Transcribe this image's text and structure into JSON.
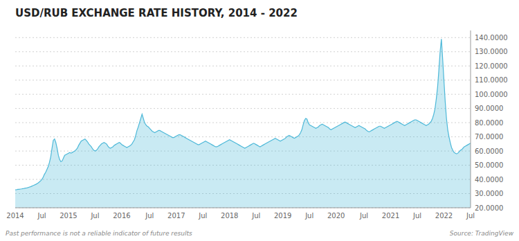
{
  "chart_data": {
    "type": "area",
    "title": "USD/RUB EXCHANGE RATE HISTORY, 2014 - 2022",
    "annotations": [
      "Past performance is not a reliable indicator of future results",
      "Source: TradingView"
    ],
    "color": "#4DB8D8",
    "grid": true,
    "ylim": [
      20,
      145
    ],
    "yticks": [
      {
        "value": 20.0,
        "label": "20.0000"
      },
      {
        "value": 30.0,
        "label": "30.0000"
      },
      {
        "value": 40.0,
        "label": "40.0000"
      },
      {
        "value": 50.0,
        "label": "50.0000"
      },
      {
        "value": 60.0,
        "label": "60.0000"
      },
      {
        "value": 70.0,
        "label": "70.0000"
      },
      {
        "value": 80.0,
        "label": "80.0000"
      },
      {
        "value": 90.0,
        "label": "90.0000"
      },
      {
        "value": 100.0,
        "label": "100.0000"
      },
      {
        "value": 110.0,
        "label": "110.0000"
      },
      {
        "value": 120.0,
        "label": "120.0000"
      },
      {
        "value": 130.0,
        "label": "130.0000"
      },
      {
        "value": 140.0,
        "label": "140.0000"
      }
    ],
    "categories": [
      "2014",
      null,
      null,
      null,
      null,
      null,
      null,
      null,
      null,
      null,
      null,
      null,
      null,
      null,
      null,
      null,
      null,
      null,
      null,
      null,
      null,
      "Jul",
      null,
      null,
      null,
      null,
      null,
      null,
      null,
      null,
      null,
      null,
      null,
      null,
      null,
      null,
      null,
      null,
      null,
      null,
      null,
      null,
      "2015",
      null,
      null,
      null,
      null,
      null,
      null,
      null,
      null,
      null,
      null,
      null,
      null,
      null,
      null,
      null,
      null,
      null,
      null,
      null,
      null,
      "Jul",
      null,
      null,
      null,
      null,
      null,
      null,
      null,
      null,
      null,
      null,
      null,
      null,
      null,
      null,
      null,
      null,
      null,
      null,
      null,
      null,
      "2016",
      null,
      null,
      null,
      null,
      null,
      null,
      null,
      null,
      null,
      null,
      null,
      null,
      null,
      null,
      null,
      null,
      null,
      null,
      null,
      null,
      null,
      "Jul",
      null,
      null,
      null,
      null,
      null,
      null,
      null,
      null,
      null,
      null,
      null,
      null,
      null,
      null,
      null,
      null,
      null,
      null,
      null,
      null,
      "2017",
      null,
      null,
      null,
      null,
      null,
      null,
      null,
      null,
      null,
      null,
      null,
      null,
      null,
      null,
      null,
      null,
      null,
      null,
      null,
      null,
      "Jul",
      null,
      null,
      null,
      null,
      null,
      null,
      null,
      null,
      null,
      null,
      null,
      null,
      null,
      null,
      null,
      null,
      null,
      null,
      null,
      null,
      "2018",
      null,
      null,
      null,
      null,
      null,
      null,
      null,
      null,
      null,
      null,
      null,
      null,
      null,
      null,
      null,
      null,
      null,
      null,
      null,
      null,
      "Jul",
      null,
      null,
      null,
      null,
      null,
      null,
      null,
      null,
      null,
      null,
      null,
      null,
      null,
      null,
      null,
      null,
      null,
      null,
      null,
      null,
      "2019",
      null,
      null,
      null,
      null,
      null,
      null,
      null,
      null,
      null,
      null,
      null,
      null,
      null,
      null,
      null,
      null,
      null,
      null,
      null,
      null,
      "Jul",
      null,
      null,
      null,
      null,
      null,
      null,
      null,
      null,
      null,
      null,
      null,
      null,
      null,
      null,
      null,
      null,
      null,
      null,
      null,
      null,
      "2020",
      null,
      null,
      null,
      null,
      null,
      null,
      null,
      null,
      null,
      null,
      null,
      null,
      null,
      null,
      null,
      null,
      null,
      null,
      null,
      null,
      null,
      "Jul",
      null,
      null,
      null,
      null,
      null,
      null,
      null,
      null,
      null,
      null,
      null,
      null,
      null,
      null,
      null,
      null,
      null,
      null,
      null,
      null,
      "2021",
      null,
      null,
      null,
      null,
      null,
      null,
      null,
      null,
      null,
      null,
      null,
      null,
      null,
      null,
      null,
      null,
      null,
      null,
      null,
      null,
      "Jul",
      null,
      null,
      null,
      null,
      null,
      null,
      null,
      null,
      null,
      null,
      null,
      null,
      null,
      null,
      null,
      null,
      null,
      null,
      null,
      null,
      "2022",
      null,
      null,
      null,
      null,
      null,
      null,
      null,
      null,
      null,
      null,
      null,
      null,
      null,
      null,
      null,
      null,
      null,
      null,
      null,
      null,
      "Jul"
    ],
    "values": [
      32.6,
      32.7,
      33.0,
      33.0,
      33.2,
      33.3,
      33.5,
      33.6,
      33.9,
      34.0,
      34.2,
      34.5,
      34.8,
      35.2,
      35.6,
      36.0,
      36.4,
      36.9,
      37.5,
      38.2,
      39.0,
      40.0,
      41.5,
      43.5,
      45.0,
      47.0,
      49.0,
      52.0,
      56.0,
      62.0,
      67.5,
      68.5,
      66.0,
      62.0,
      57.0,
      54.0,
      52.5,
      53.0,
      55.0,
      57.0,
      57.5,
      58.0,
      58.5,
      59.0,
      58.5,
      59.0,
      59.5,
      60.0,
      61.0,
      62.0,
      64.0,
      65.5,
      67.0,
      67.5,
      68.0,
      68.5,
      67.5,
      66.5,
      65.0,
      64.0,
      63.0,
      61.5,
      60.5,
      60.0,
      60.5,
      61.5,
      63.0,
      64.0,
      65.0,
      65.5,
      66.0,
      65.5,
      65.0,
      63.5,
      62.5,
      62.0,
      62.5,
      63.0,
      64.0,
      64.5,
      65.0,
      65.5,
      66.0,
      65.5,
      64.5,
      64.0,
      63.5,
      63.0,
      62.5,
      63.0,
      63.5,
      64.0,
      65.0,
      66.5,
      68.0,
      71.0,
      74.5,
      77.0,
      80.0,
      83.0,
      86.0,
      83.0,
      80.0,
      78.5,
      77.5,
      77.0,
      76.0,
      75.0,
      74.0,
      73.5,
      73.0,
      73.5,
      74.0,
      74.5,
      74.5,
      74.0,
      73.5,
      73.0,
      72.5,
      72.0,
      71.5,
      71.0,
      70.5,
      70.0,
      69.5,
      69.5,
      70.0,
      70.5,
      71.0,
      71.5,
      71.5,
      71.0,
      70.5,
      70.0,
      69.5,
      69.0,
      68.5,
      68.0,
      67.5,
      67.0,
      66.5,
      66.0,
      65.5,
      65.0,
      64.5,
      64.5,
      65.0,
      65.5,
      66.0,
      66.5,
      67.0,
      66.5,
      66.0,
      65.5,
      65.0,
      64.5,
      64.0,
      63.5,
      63.0,
      63.0,
      63.5,
      64.0,
      64.5,
      65.0,
      65.5,
      66.0,
      66.5,
      67.0,
      67.5,
      68.0,
      67.5,
      67.0,
      66.5,
      66.0,
      65.5,
      65.0,
      64.5,
      64.0,
      63.5,
      63.0,
      62.5,
      62.0,
      62.5,
      63.0,
      63.5,
      64.0,
      64.5,
      65.0,
      65.5,
      65.0,
      64.5,
      64.0,
      63.5,
      63.0,
      63.5,
      64.0,
      64.5,
      65.0,
      65.5,
      66.0,
      66.5,
      67.0,
      67.5,
      68.0,
      68.5,
      69.0,
      68.5,
      68.0,
      67.5,
      67.0,
      67.5,
      68.0,
      68.5,
      69.0,
      70.0,
      70.5,
      71.0,
      70.5,
      70.0,
      69.5,
      69.0,
      69.5,
      70.0,
      70.5,
      71.5,
      73.0,
      75.0,
      78.5,
      81.5,
      83.0,
      82.5,
      80.0,
      78.5,
      78.0,
      77.5,
      77.0,
      76.5,
      76.0,
      76.5,
      77.0,
      78.0,
      78.5,
      79.0,
      78.5,
      78.0,
      77.5,
      77.0,
      76.5,
      75.5,
      75.0,
      75.5,
      76.0,
      76.5,
      77.0,
      77.5,
      78.0,
      78.5,
      79.0,
      79.5,
      80.0,
      80.5,
      80.0,
      79.5,
      79.0,
      78.5,
      78.0,
      77.5,
      77.0,
      76.5,
      77.0,
      77.5,
      78.0,
      77.5,
      77.0,
      76.5,
      76.0,
      75.5,
      74.5,
      74.0,
      73.5,
      74.0,
      74.5,
      75.0,
      75.5,
      76.0,
      76.5,
      77.0,
      77.5,
      77.5,
      77.0,
      76.5,
      76.0,
      76.5,
      77.0,
      77.5,
      78.0,
      78.5,
      79.0,
      79.5,
      80.0,
      80.5,
      81.0,
      80.5,
      80.0,
      79.5,
      79.0,
      78.5,
      78.0,
      78.5,
      79.0,
      79.5,
      80.0,
      80.5,
      81.0,
      81.5,
      82.0,
      82.0,
      81.5,
      81.0,
      80.5,
      80.0,
      79.5,
      79.0,
      78.5,
      78.0,
      78.5,
      79.0,
      80.0,
      81.0,
      83.0,
      86.0,
      90.0,
      97.0,
      105.0,
      117.0,
      130.0,
      139.0,
      125.0,
      110.0,
      95.0,
      83.0,
      75.0,
      70.0,
      66.0,
      62.5,
      60.5,
      59.0,
      58.5,
      58.0,
      58.5,
      59.5,
      60.5,
      61.0,
      62.0,
      63.0,
      63.5,
      64.0,
      64.5,
      65.0,
      65.5
    ]
  }
}
